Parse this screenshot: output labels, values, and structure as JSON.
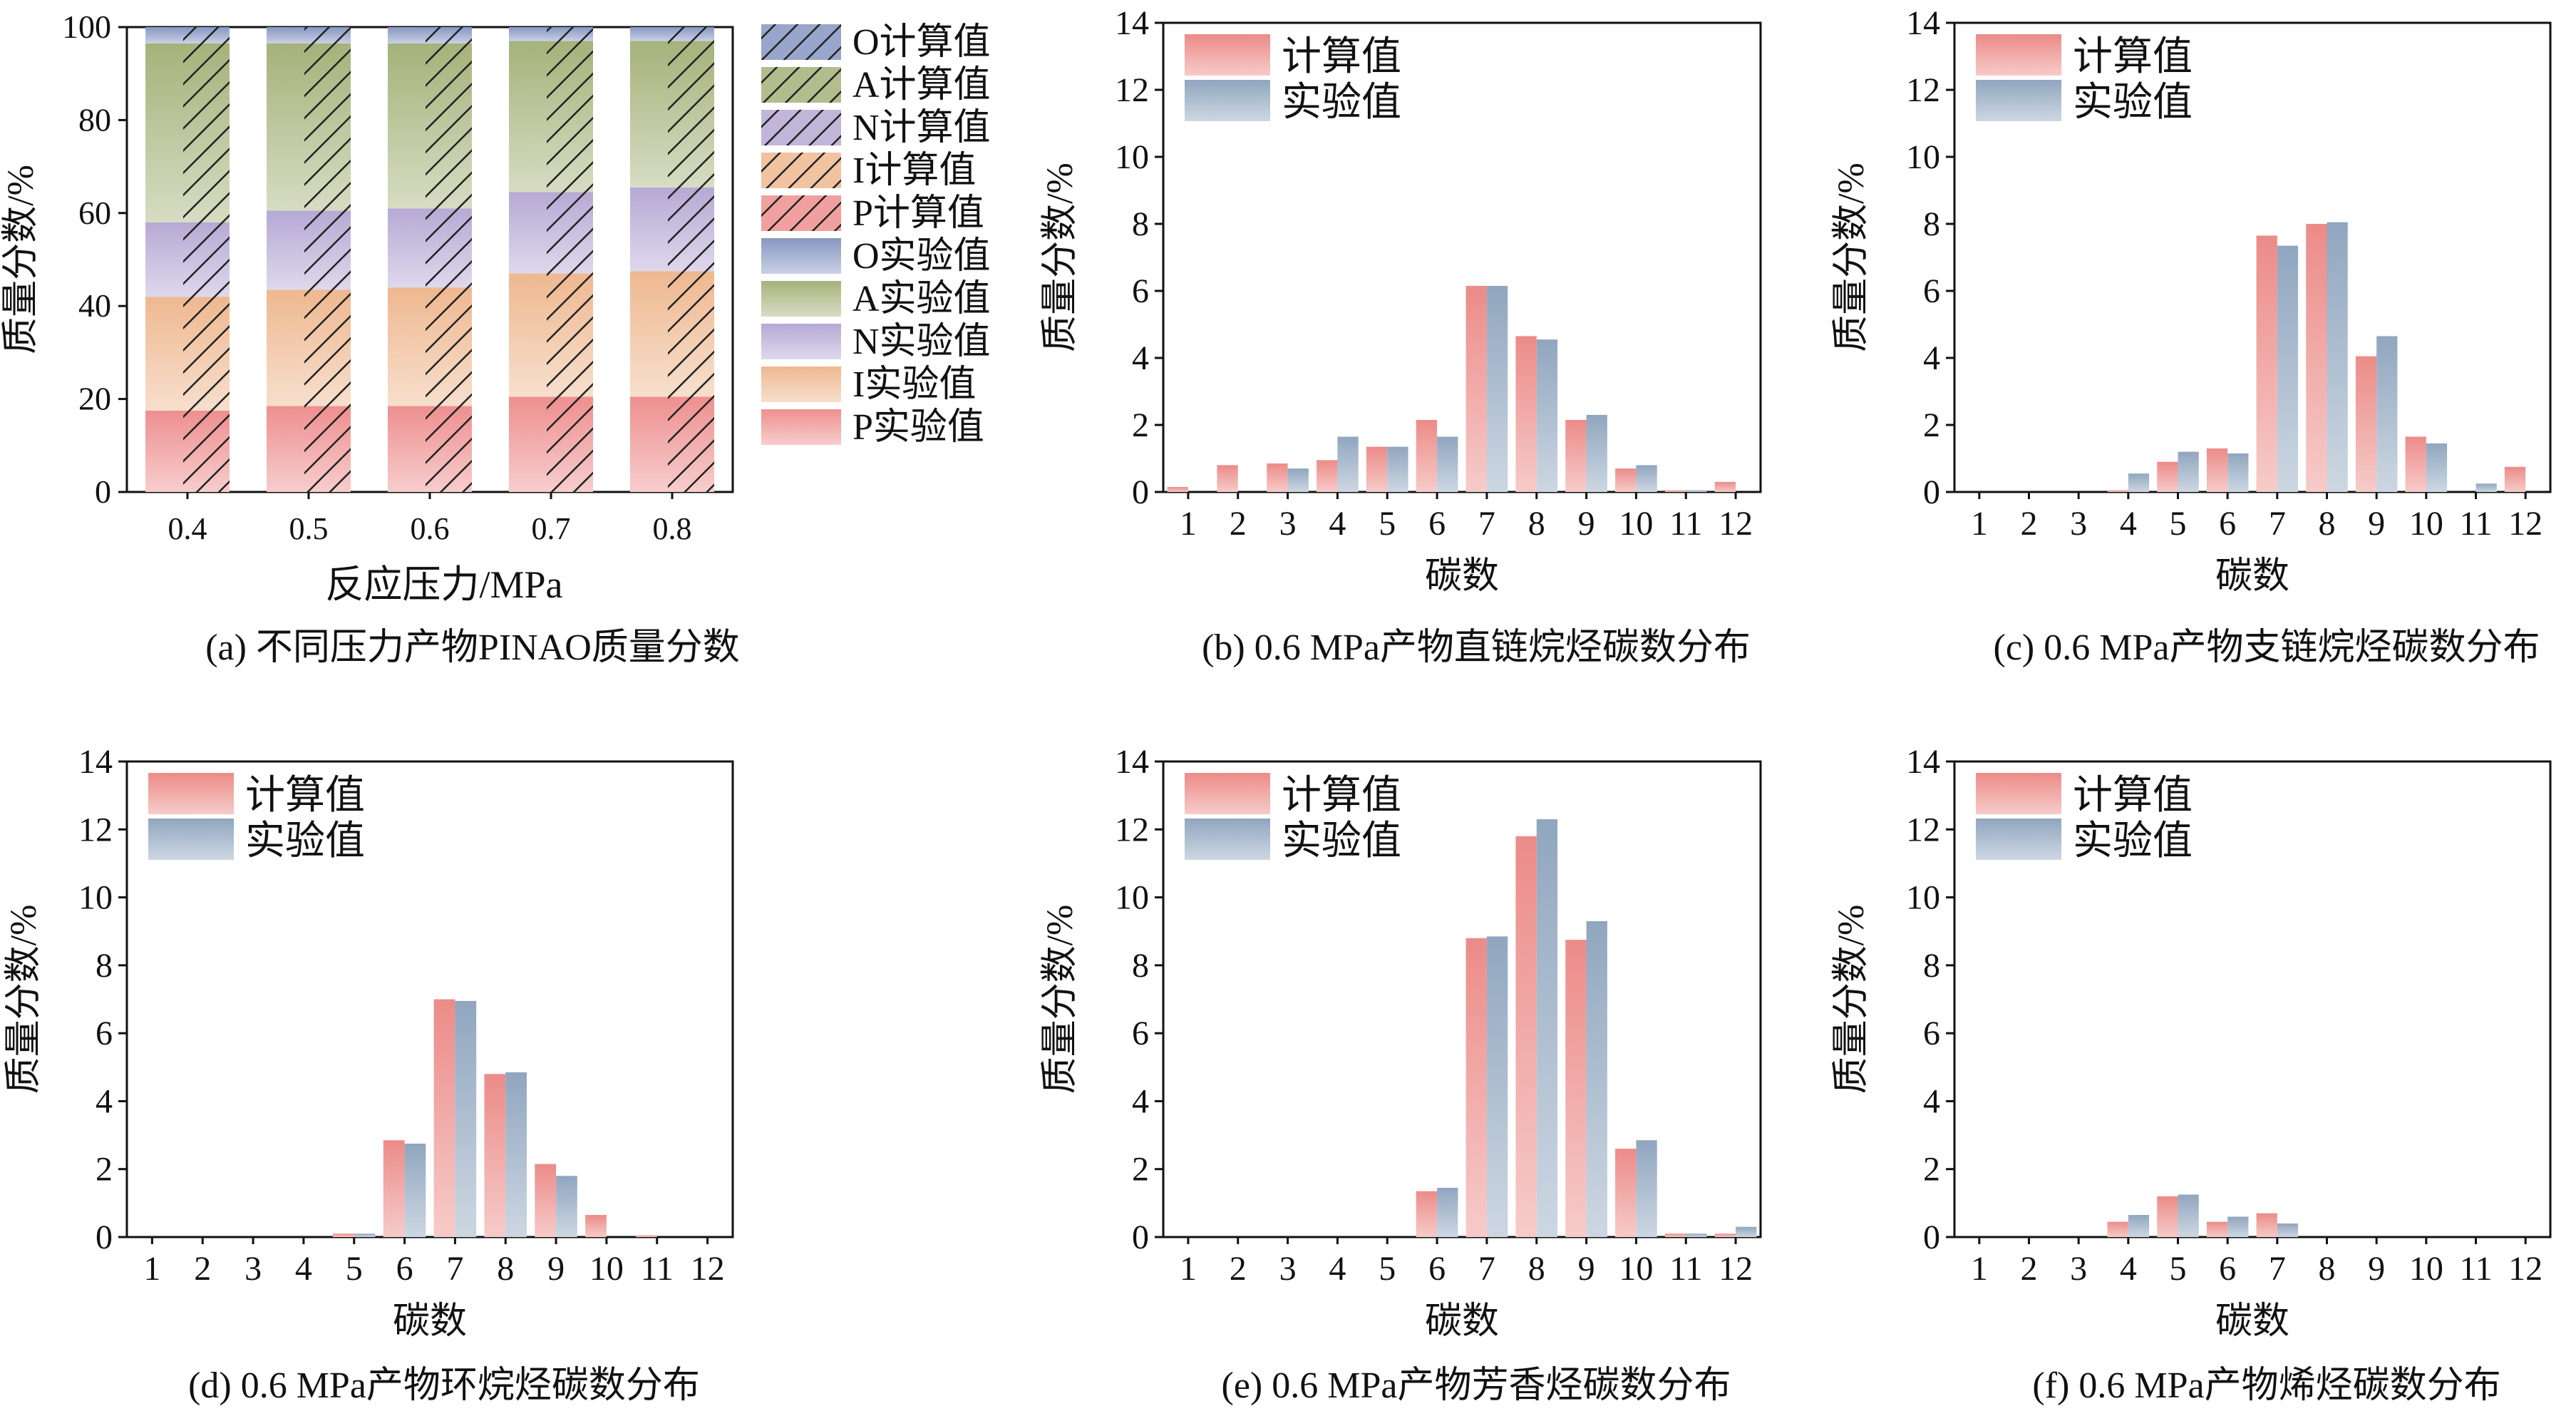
{
  "colors": {
    "P": "#ee8f8f",
    "I": "#eeb890",
    "N": "#b6a9d4",
    "A": "#a5b27a",
    "O": "#8797c2",
    "calc": "#ec8b88",
    "exp": "#90a6bf"
  },
  "chart_data": [
    {
      "type": "bar",
      "stacked": true,
      "title": "(a) 不同压力产物PINAO质量分数",
      "xlabel": "反应压力/MPa",
      "ylabel": "质量分数/%",
      "categories": [
        "0.4",
        "0.5",
        "0.6",
        "0.7",
        "0.8"
      ],
      "ylim": [
        0,
        100
      ],
      "yticks": [
        "0",
        "20",
        "40",
        "60",
        "80",
        "100"
      ],
      "groups": {
        "experimental": [
          {
            "name": "P实验值",
            "key": "P",
            "values": [
              17.5,
              18.5,
              18.5,
              20.5,
              20.5
            ]
          },
          {
            "name": "I实验值",
            "key": "I",
            "values": [
              24.5,
              25.0,
              25.5,
              26.5,
              27.0
            ]
          },
          {
            "name": "N实验值",
            "key": "N",
            "values": [
              16.0,
              17.0,
              17.0,
              17.5,
              18.0
            ]
          },
          {
            "name": "A实验值",
            "key": "A",
            "values": [
              38.5,
              36.0,
              35.5,
              32.5,
              31.5
            ]
          },
          {
            "name": "O实验值",
            "key": "O",
            "values": [
              3.5,
              3.5,
              3.5,
              3.0,
              3.0
            ]
          }
        ],
        "calculated": [
          {
            "name": "P计算值",
            "key": "P",
            "values": [
              18.0,
              19.0,
              19.5,
              20.5,
              21.0
            ]
          },
          {
            "name": "I计算值",
            "key": "I",
            "values": [
              23.5,
              24.5,
              25.0,
              26.0,
              26.5
            ]
          },
          {
            "name": "N计算值",
            "key": "N",
            "values": [
              17.0,
              17.5,
              18.0,
              18.0,
              18.5
            ]
          },
          {
            "name": "A计算值",
            "key": "A",
            "values": [
              38.5,
              36.0,
              34.5,
              32.5,
              31.0
            ]
          },
          {
            "name": "O计算值",
            "key": "O",
            "values": [
              3.0,
              3.0,
              3.0,
              3.0,
              3.0
            ]
          }
        ]
      },
      "legend": [
        "O计算值",
        "A计算值",
        "N计算值",
        "I计算值",
        "P计算值",
        "O实验值",
        "A实验值",
        "N实验值",
        "I实验值",
        "P实验值"
      ]
    },
    {
      "type": "bar",
      "title": "(b) 0.6 MPa产物直链烷烃碳数分布",
      "xlabel": "碳数",
      "ylabel": "质量分数/%",
      "categories": [
        "1",
        "2",
        "3",
        "4",
        "5",
        "6",
        "7",
        "8",
        "9",
        "10",
        "11",
        "12"
      ],
      "ylim": [
        0,
        14
      ],
      "yticks": [
        "0",
        "2",
        "4",
        "6",
        "8",
        "10",
        "12",
        "14"
      ],
      "legend": [
        "计算值",
        "实验值"
      ],
      "series": [
        {
          "name": "计算值",
          "values": [
            0.15,
            0.8,
            0.85,
            0.95,
            1.35,
            2.15,
            6.15,
            4.65,
            2.15,
            0.7,
            0.05,
            0.3
          ]
        },
        {
          "name": "实验值",
          "values": [
            0.0,
            0.0,
            0.7,
            1.65,
            1.35,
            1.65,
            6.15,
            4.55,
            2.3,
            0.8,
            0.05,
            0.0
          ]
        }
      ]
    },
    {
      "type": "bar",
      "title": "(c) 0.6 MPa产物支链烷烃碳数分布",
      "xlabel": "碳数",
      "ylabel": "质量分数/%",
      "categories": [
        "1",
        "2",
        "3",
        "4",
        "5",
        "6",
        "7",
        "8",
        "9",
        "10",
        "11",
        "12"
      ],
      "ylim": [
        0,
        14
      ],
      "yticks": [
        "0",
        "2",
        "4",
        "6",
        "8",
        "10",
        "12",
        "14"
      ],
      "legend": [
        "计算值",
        "实验值"
      ],
      "series": [
        {
          "name": "计算值",
          "values": [
            0,
            0,
            0,
            0.05,
            0.9,
            1.3,
            7.65,
            8.0,
            4.05,
            1.65,
            0.0,
            0.75
          ]
        },
        {
          "name": "实验值",
          "values": [
            0,
            0,
            0,
            0.55,
            1.2,
            1.15,
            7.35,
            8.05,
            4.65,
            1.45,
            0.25,
            0.0
          ]
        }
      ]
    },
    {
      "type": "bar",
      "title": "(d) 0.6 MPa产物环烷烃碳数分布",
      "xlabel": "碳数",
      "ylabel": "质量分数/%",
      "categories": [
        "1",
        "2",
        "3",
        "4",
        "5",
        "6",
        "7",
        "8",
        "9",
        "10",
        "11",
        "12"
      ],
      "ylim": [
        0,
        14
      ],
      "yticks": [
        "0",
        "2",
        "4",
        "6",
        "8",
        "10",
        "12",
        "14"
      ],
      "legend": [
        "计算值",
        "实验值"
      ],
      "series": [
        {
          "name": "计算值",
          "values": [
            0,
            0,
            0,
            0,
            0.1,
            2.85,
            7.0,
            4.8,
            2.15,
            0.65,
            0.05,
            0.0
          ]
        },
        {
          "name": "实验值",
          "values": [
            0,
            0,
            0,
            0,
            0.1,
            2.75,
            6.95,
            4.85,
            1.8,
            0.0,
            0.0,
            0.0
          ]
        }
      ]
    },
    {
      "type": "bar",
      "title": "(e) 0.6 MPa产物芳香烃碳数分布",
      "xlabel": "碳数",
      "ylabel": "质量分数/%",
      "categories": [
        "1",
        "2",
        "3",
        "4",
        "5",
        "6",
        "7",
        "8",
        "9",
        "10",
        "11",
        "12"
      ],
      "ylim": [
        0,
        14
      ],
      "yticks": [
        "0",
        "2",
        "4",
        "6",
        "8",
        "10",
        "12",
        "14"
      ],
      "legend": [
        "计算值",
        "实验值"
      ],
      "series": [
        {
          "name": "计算值",
          "values": [
            0,
            0,
            0,
            0,
            0,
            1.35,
            8.8,
            11.8,
            8.75,
            2.6,
            0.1,
            0.1
          ]
        },
        {
          "name": "实验值",
          "values": [
            0,
            0,
            0,
            0,
            0,
            1.45,
            8.85,
            12.3,
            9.3,
            2.85,
            0.1,
            0.3
          ]
        }
      ]
    },
    {
      "type": "bar",
      "title": "(f) 0.6 MPa产物烯烃碳数分布",
      "xlabel": "碳数",
      "ylabel": "质量分数/%",
      "categories": [
        "1",
        "2",
        "3",
        "4",
        "5",
        "6",
        "7",
        "8",
        "9",
        "10",
        "11",
        "12"
      ],
      "ylim": [
        0,
        14
      ],
      "yticks": [
        "0",
        "2",
        "4",
        "6",
        "8",
        "10",
        "12",
        "14"
      ],
      "legend": [
        "计算值",
        "实验值"
      ],
      "series": [
        {
          "name": "计算值",
          "values": [
            0,
            0,
            0,
            0.45,
            1.2,
            0.45,
            0.7,
            0,
            0,
            0,
            0,
            0
          ]
        },
        {
          "name": "实验值",
          "values": [
            0,
            0,
            0,
            0.65,
            1.25,
            0.6,
            0.4,
            0,
            0,
            0,
            0,
            0
          ]
        }
      ]
    }
  ]
}
